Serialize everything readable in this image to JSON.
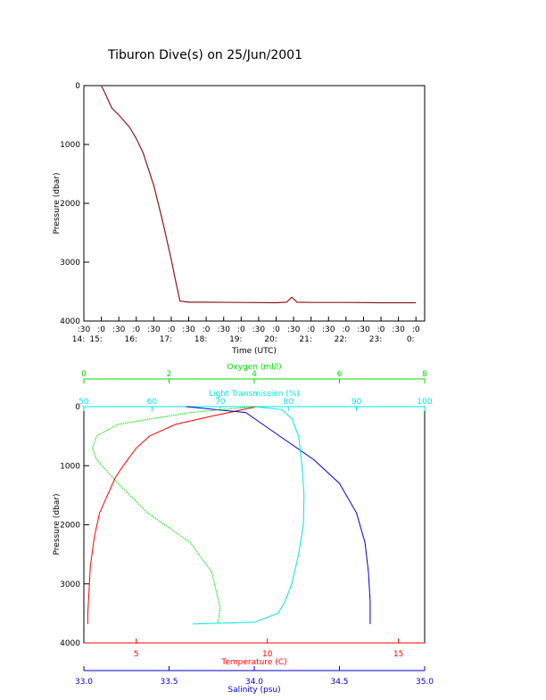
{
  "title": "Tiburon Dive(s) on 25/Jun/2001",
  "colors": {
    "axis": "#000000",
    "depth_trace": "#8b1a1a",
    "oxygen": "#00dd00",
    "transmission": "#00e5e5",
    "temperature": "#ff0000",
    "salinity": "#0000cc"
  },
  "chart_data": [
    {
      "type": "line",
      "ylabel": "Pressure (dbar)",
      "xlabel": "Time (UTC)",
      "ylim": [
        4000,
        0
      ],
      "yticks": [
        "0",
        "1000",
        "2000",
        "3000",
        "4000"
      ],
      "xlim": [
        14.5,
        24.25
      ],
      "xticks_minute": [
        ":30",
        ":0",
        ":30",
        ":0",
        ":30",
        ":0",
        ":30",
        ":0",
        ":30",
        ":0",
        ":30",
        ":0",
        ":30",
        ":0",
        ":30",
        ":0",
        ":30",
        ":0",
        ":30",
        ":0"
      ],
      "xticks_hour": [
        "14:",
        "15:",
        "16:",
        "17:",
        "18:",
        "19:",
        "20:",
        "21:",
        "22:",
        "23:",
        "0:"
      ],
      "series": [
        {
          "x": [
            15.0,
            15.1,
            15.2,
            15.3,
            15.5,
            15.8,
            16.0,
            16.2,
            16.5,
            16.75,
            17.0,
            17.1,
            17.25,
            17.5,
            18.0,
            19.0,
            20.0,
            20.3,
            20.45,
            20.6,
            21.0,
            22.0,
            23.0,
            24.0
          ],
          "y": [
            0,
            120,
            250,
            380,
            500,
            700,
            900,
            1150,
            1700,
            2300,
            2950,
            3250,
            3660,
            3680,
            3680,
            3685,
            3690,
            3680,
            3595,
            3680,
            3685,
            3685,
            3690,
            3690
          ]
        }
      ]
    },
    {
      "type": "line",
      "ylabel": "Pressure (dbar)",
      "ylim": [
        4000,
        0
      ],
      "yticks": [
        "0",
        "1000",
        "2000",
        "3000",
        "4000"
      ],
      "axes": {
        "oxygen": {
          "label": "Oxygen (ml/l)",
          "range": [
            0,
            8
          ],
          "ticks": [
            "0",
            "2",
            "4",
            "6",
            "8"
          ]
        },
        "transmission": {
          "label": "Light Transmission (%)",
          "range": [
            50,
            100
          ],
          "ticks": [
            "50",
            "60",
            "70",
            "80",
            "90",
            "100"
          ]
        },
        "temperature": {
          "label": "Temperature (C)",
          "range": [
            3,
            16
          ],
          "ticks": [
            "5",
            "10",
            "15"
          ]
        },
        "salinity": {
          "label": "Salinity (psu)",
          "range": [
            33.0,
            35.0
          ],
          "ticks": [
            "33.0",
            "33.5",
            "34.0",
            "34.5",
            "35.0"
          ]
        }
      },
      "series": [
        {
          "axis": "temperature",
          "x": [
            9.6,
            8.0,
            6.5,
            5.5,
            5.0,
            4.5,
            4.2,
            3.9,
            3.6,
            3.4,
            3.25,
            3.2,
            3.15,
            3.15
          ],
          "y": [
            0,
            150,
            300,
            500,
            700,
            1000,
            1200,
            1500,
            1800,
            2200,
            2700,
            3100,
            3500,
            3680
          ]
        },
        {
          "axis": "salinity",
          "x": [
            33.6,
            33.95,
            34.05,
            34.15,
            34.35,
            34.5,
            34.6,
            34.65,
            34.67,
            34.68,
            34.68
          ],
          "y": [
            0,
            100,
            300,
            500,
            900,
            1300,
            1800,
            2300,
            2800,
            3300,
            3680
          ]
        },
        {
          "axis": "oxygen",
          "x": [
            4.0,
            2.5,
            0.8,
            0.3,
            0.2,
            0.3,
            0.8,
            1.5,
            2.5,
            3.0,
            3.2,
            3.15
          ],
          "y": [
            0,
            100,
            300,
            500,
            700,
            900,
            1300,
            1800,
            2300,
            2800,
            3400,
            3650
          ]
        },
        {
          "axis": "transmission",
          "x": [
            75,
            79,
            80.5,
            81.5,
            82,
            82.3,
            82.2,
            81.5,
            80.5,
            79.5,
            78.5,
            75,
            66
          ],
          "y": [
            0,
            50,
            200,
            500,
            1000,
            1500,
            2000,
            2500,
            3000,
            3300,
            3500,
            3650,
            3680
          ]
        }
      ]
    }
  ]
}
